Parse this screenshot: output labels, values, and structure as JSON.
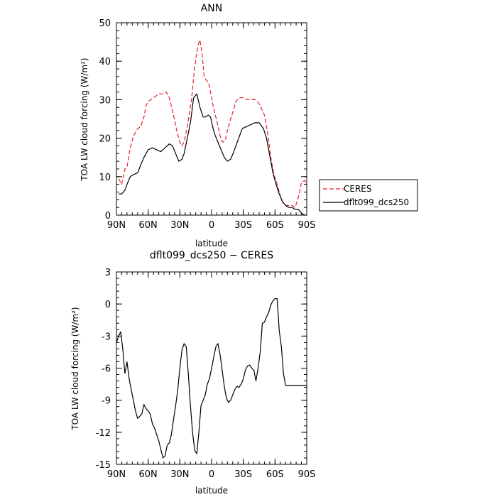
{
  "chart_data": [
    {
      "type": "line",
      "title": "ANN",
      "xlabel": "latitude",
      "ylabel": "TOA LW cloud forcing (W/m²)",
      "xlim": [
        90,
        -90
      ],
      "ylim": [
        0,
        50
      ],
      "x_ticks": [
        90,
        60,
        30,
        0,
        -30,
        -60,
        -90
      ],
      "x_tick_labels": [
        "90N",
        "60N",
        "30N",
        "0",
        "30S",
        "60S",
        "90S"
      ],
      "y_ticks": [
        0,
        10,
        20,
        30,
        40,
        50
      ],
      "y_tick_labels": [
        "0",
        "10",
        "20",
        "30",
        "40",
        "50"
      ],
      "legend": {
        "placement": "right"
      },
      "series": [
        {
          "name": "CERES",
          "color": "#e8202a",
          "dash": "dashed",
          "x": [
            88,
            85,
            82,
            80,
            77,
            74,
            70,
            67,
            64,
            62,
            60,
            55,
            50,
            46,
            43,
            40,
            36,
            33,
            30,
            28,
            26,
            23,
            19,
            16,
            13,
            11,
            9,
            7,
            5,
            3,
            1,
            -1,
            -3,
            -5,
            -7,
            -9,
            -11,
            -13,
            -15,
            -18,
            -21,
            -23,
            -26,
            -30,
            -34,
            -38,
            -42,
            -46,
            -50,
            -53,
            -56,
            -59,
            -62,
            -65,
            -68,
            -70,
            -73,
            -76,
            -79,
            -82,
            -85,
            -88,
            -90
          ],
          "y": [
            9.5,
            8,
            12,
            12.5,
            17.5,
            20.5,
            22.5,
            23,
            25.5,
            28.5,
            29.5,
            30.5,
            31.5,
            31.5,
            32,
            30.5,
            26,
            22,
            19,
            18,
            19,
            23,
            30,
            38.5,
            44,
            45.5,
            42,
            36,
            35,
            34.5,
            32,
            29,
            26.5,
            24.5,
            22,
            19.5,
            19,
            19.5,
            22,
            25,
            27.5,
            29.5,
            30.5,
            30.5,
            30,
            30,
            30,
            28.5,
            26,
            21.5,
            15,
            10.5,
            8,
            5,
            3,
            2.5,
            2.5,
            2.5,
            2,
            4.5,
            8.5,
            9,
            8
          ]
        },
        {
          "name": "dflt099_dcs250",
          "color": "#000000",
          "dash": "solid",
          "x": [
            88,
            85,
            82,
            80,
            77,
            74,
            70,
            67,
            64,
            60,
            56,
            52,
            48,
            44,
            40,
            37,
            34,
            31,
            28,
            26,
            23,
            20,
            17,
            14,
            11,
            8,
            6,
            3,
            1,
            -1,
            -3,
            -6,
            -9,
            -12,
            -15,
            -18,
            -21,
            -25,
            -29,
            -33,
            -37,
            -41,
            -45,
            -49,
            -52,
            -55,
            -58,
            -61,
            -64,
            -67,
            -70,
            -73,
            -76,
            -79,
            -82,
            -85,
            -88,
            -90
          ],
          "y": [
            5.5,
            5.5,
            6.5,
            8,
            10,
            10.5,
            11,
            13,
            15,
            17,
            17.5,
            17,
            16.5,
            17.5,
            18.5,
            18,
            16,
            14,
            14.5,
            16,
            20,
            24,
            30.5,
            31.5,
            28,
            25.5,
            25.5,
            26,
            25.5,
            23,
            21,
            19,
            17,
            15,
            14,
            14.5,
            16.5,
            19.5,
            22.5,
            23,
            23.5,
            24,
            24,
            22.5,
            20,
            15.5,
            11,
            8,
            5.5,
            3.5,
            2.5,
            2,
            2,
            1.5,
            1.5,
            0.5,
            0,
            0
          ]
        }
      ]
    },
    {
      "type": "line",
      "title": "dflt099_dcs250 − CERES",
      "xlabel": "latitude",
      "ylabel": "TOA LW cloud forcing (W/m²)",
      "xlim": [
        90,
        -90
      ],
      "ylim": [
        -15,
        3
      ],
      "x_ticks": [
        90,
        60,
        30,
        0,
        -30,
        -60,
        -90
      ],
      "x_tick_labels": [
        "90N",
        "60N",
        "30N",
        "0",
        "30S",
        "60S",
        "90S"
      ],
      "y_ticks": [
        3,
        0,
        -3,
        -6,
        -9,
        -12,
        -15
      ],
      "y_tick_labels": [
        "3",
        "0",
        "-3",
        "-6",
        "-9",
        "-12",
        "-15"
      ],
      "series": [
        {
          "color": "#000000",
          "dash": "solid",
          "x": [
            90,
            88,
            86,
            84,
            82,
            80,
            78,
            76,
            74,
            72,
            70,
            68,
            66,
            64,
            62,
            60,
            58,
            56,
            54,
            52,
            50,
            48,
            46,
            44,
            42,
            40,
            38,
            36,
            34,
            32,
            30,
            28,
            26,
            24,
            22,
            20,
            18,
            16,
            14,
            12,
            10,
            8,
            6,
            4,
            2,
            0,
            -2,
            -4,
            -6,
            -8,
            -10,
            -12,
            -14,
            -16,
            -18,
            -20,
            -22,
            -24,
            -26,
            -28,
            -30,
            -32,
            -34,
            -36,
            -38,
            -40,
            -42,
            -44,
            -46,
            -48,
            -50,
            -52,
            -54,
            -56,
            -58,
            -60,
            -62,
            -64,
            -66,
            -68,
            -70,
            -72,
            -74,
            -76,
            -78,
            -80,
            -82,
            -84,
            -86,
            -88,
            -90
          ],
          "y": [
            -3.6,
            -3,
            -2.6,
            -4.2,
            -6.5,
            -5.4,
            -7,
            -8,
            -9,
            -10,
            -10.7,
            -10.5,
            -10.3,
            -9.4,
            -9.8,
            -10,
            -10.3,
            -11.2,
            -11.6,
            -12.2,
            -12.8,
            -13.6,
            -14.4,
            -14.2,
            -13.2,
            -13,
            -12.2,
            -10.8,
            -9.5,
            -8,
            -6,
            -4.3,
            -3.7,
            -4,
            -6.5,
            -9.5,
            -12,
            -13.7,
            -14,
            -12,
            -9.5,
            -9,
            -8.5,
            -7.5,
            -7,
            -6,
            -5,
            -4,
            -3.7,
            -4.7,
            -6.2,
            -7.7,
            -8.8,
            -9.2,
            -9,
            -8.5,
            -8,
            -7.7,
            -7.8,
            -7.5,
            -7,
            -6.2,
            -5.8,
            -5.7,
            -6,
            -6.2,
            -7.2,
            -6,
            -4.5,
            -1.8,
            -1.7,
            -1.2,
            -0.8,
            -0.1,
            0.3,
            0.5,
            0.5,
            -2.5,
            -4,
            -6.5,
            -7.6,
            -7.6,
            -7.6,
            -7.6,
            -7.6,
            -7.6,
            -7.6,
            -7.6,
            -7.6,
            -7.6,
            -7.6
          ]
        }
      ]
    }
  ]
}
